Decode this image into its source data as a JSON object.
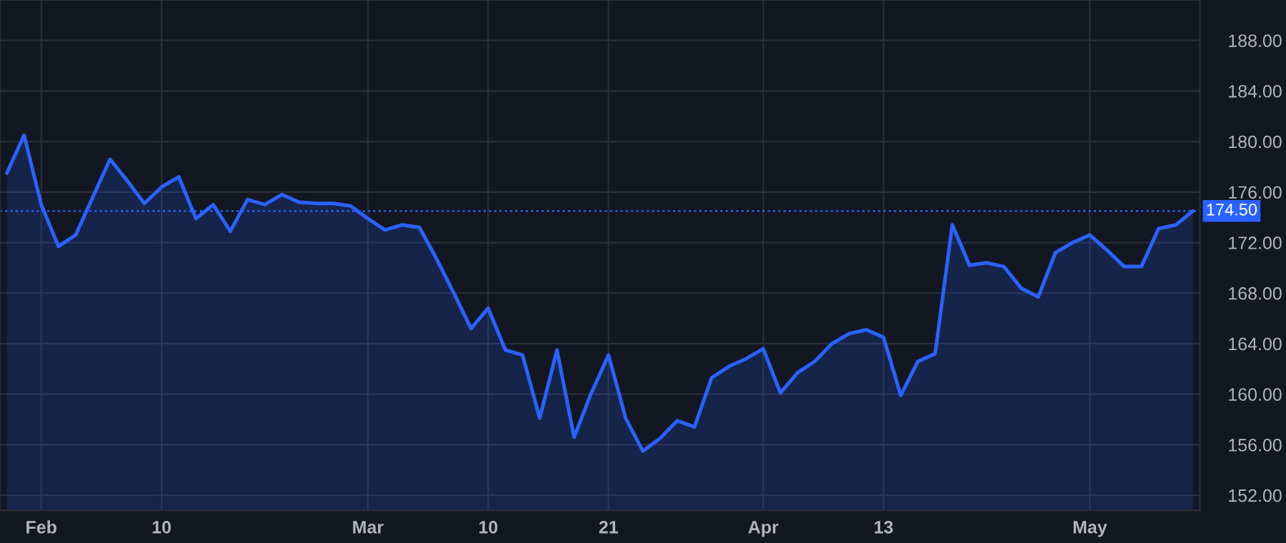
{
  "chart_data": {
    "type": "area",
    "categories": [
      null,
      null,
      "Feb",
      null,
      null,
      null,
      null,
      null,
      null,
      "10",
      null,
      null,
      null,
      null,
      null,
      null,
      null,
      null,
      null,
      null,
      null,
      "Mar",
      null,
      null,
      null,
      null,
      null,
      null,
      "10",
      null,
      null,
      null,
      null,
      null,
      null,
      "21",
      null,
      null,
      null,
      null,
      null,
      null,
      null,
      null,
      "Apr",
      null,
      null,
      null,
      null,
      null,
      null,
      "13",
      null,
      null,
      null,
      null,
      null,
      null,
      null,
      null,
      null,
      null,
      null,
      "May",
      null,
      null,
      null,
      null,
      null,
      null
    ],
    "series": [
      {
        "color": "#2962ff",
        "values": [
          177.5,
          180.5,
          175.0,
          171.7,
          172.6,
          175.6,
          178.6,
          176.9,
          175.1,
          176.4,
          177.2,
          173.9,
          175.0,
          172.9,
          175.4,
          175.0,
          175.8,
          175.2,
          175.1,
          175.1,
          174.9,
          173.9,
          173.0,
          173.4,
          173.2,
          170.7,
          168.0,
          165.2,
          166.8,
          163.5,
          163.1,
          158.1,
          163.5,
          156.6,
          160.1,
          163.1,
          158.1,
          155.5,
          156.5,
          157.9,
          157.4,
          161.3,
          162.2,
          162.8,
          163.6,
          160.1,
          161.7,
          162.6,
          164.0,
          164.8,
          165.1,
          164.5,
          159.9,
          162.6,
          163.2,
          173.4,
          170.2,
          170.4,
          170.1,
          168.4,
          167.7,
          171.2,
          172.0,
          172.6,
          171.4,
          170.1,
          170.1,
          173.1,
          173.4,
          174.5
        ]
      }
    ],
    "ylim": [
      150.8,
      191.2
    ],
    "yticks": [
      {
        "value": 152,
        "label": "152.00"
      },
      {
        "value": 156,
        "label": "156.00"
      },
      {
        "value": 160,
        "label": "160.00"
      },
      {
        "value": 164,
        "label": "164.00"
      },
      {
        "value": 168,
        "label": "168.00"
      },
      {
        "value": 172,
        "label": "172.00"
      },
      {
        "value": 176,
        "label": "176.00"
      },
      {
        "value": 180,
        "label": "180.00"
      },
      {
        "value": 184,
        "label": "184.00"
      },
      {
        "value": 188,
        "label": "188.00"
      }
    ],
    "ref_lines": [
      {
        "axis": "y",
        "value": 174.5,
        "label": "174.50",
        "color": "#2962ff",
        "line_style": "dotted"
      }
    ],
    "grid": true
  }
}
